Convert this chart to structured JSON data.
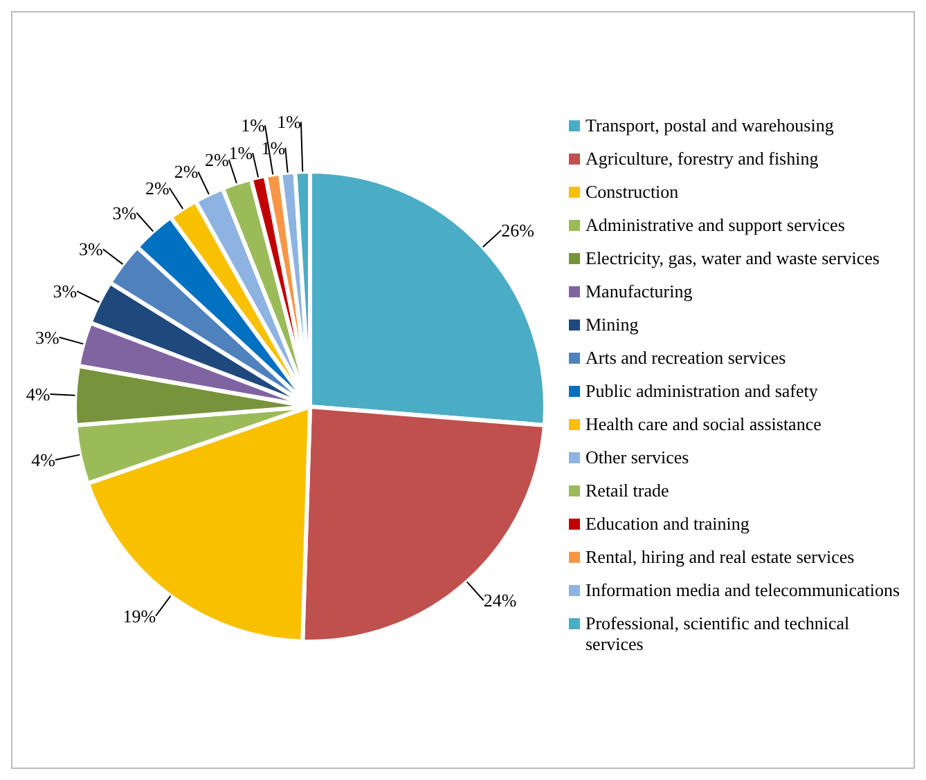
{
  "chart_data": {
    "type": "pie",
    "categories": [
      "Transport, postal and warehousing",
      "Agriculture, forestry and fishing",
      "Construction",
      "Administrative and support services",
      "Electricity, gas, water and waste services",
      "Manufacturing",
      "Mining",
      "Arts and recreation services",
      "Public administration and safety",
      "Health care and social assistance",
      "Other services",
      "Retail trade",
      "Education and training",
      "Rental, hiring and real estate services",
      "Information media and telecommunications",
      "Professional, scientific and technical services"
    ],
    "values": [
      26,
      24,
      19,
      4,
      4,
      3,
      3,
      3,
      3,
      2,
      2,
      2,
      1,
      1,
      1,
      1
    ],
    "value_labels": [
      "26%",
      "24%",
      "19%",
      "4%",
      "4%",
      "3%",
      "3%",
      "3%",
      "3%",
      "2%",
      "2%",
      "2%",
      "1%",
      "1%",
      "1%",
      "1%"
    ],
    "colors": [
      "#4bacc6",
      "#c0504d",
      "#f9c000",
      "#9bbb59",
      "#77933c",
      "#8064a2",
      "#1f497d",
      "#4f81bd",
      "#0070c0",
      "#f9c000",
      "#8db3e2",
      "#9bbb59",
      "#c00000",
      "#f79646",
      "#8db3e2",
      "#4bacc6"
    ],
    "legend": "right"
  }
}
